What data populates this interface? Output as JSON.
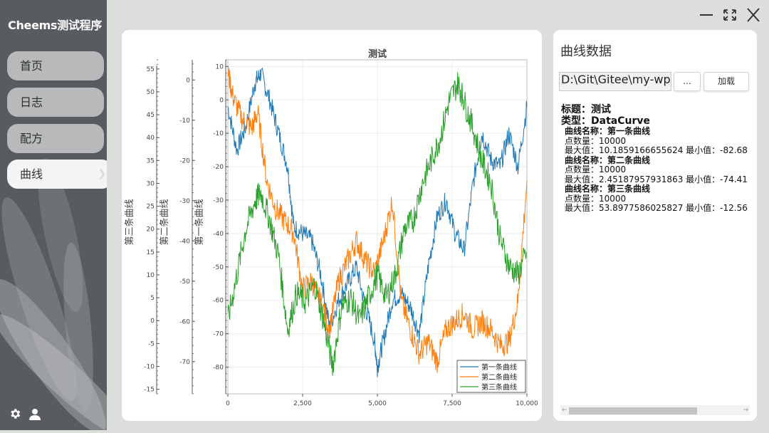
{
  "app": {
    "title": "Cheems测试程序"
  },
  "nav": {
    "items": [
      {
        "label": "首页"
      },
      {
        "label": "日志"
      },
      {
        "label": "配方"
      },
      {
        "label": "曲线",
        "active": true
      }
    ]
  },
  "icons": {
    "settings": "gear-icon",
    "user": "user-icon",
    "minimize": "minimize-icon",
    "maximize": "maximize-icon",
    "close": "close-icon",
    "chevron": "chevron-right-icon"
  },
  "data_panel": {
    "title": "曲线数据",
    "path_value": "D:\\Git\\Gitee\\my-wpf\\",
    "browse_label": "...",
    "load_label": "加载",
    "info_title": "标题：测试",
    "info_type": "类型：DataCurve",
    "curves": [
      {
        "name": "曲线名称：第一条曲线",
        "points": "点数量：10000",
        "range": "最大值：10.1859166655624   最小值：-82.68"
      },
      {
        "name": "曲线名称：第二条曲线",
        "points": "点数量：10000",
        "range": "最大值：2.45187957931863   最小值：-74.41"
      },
      {
        "name": "曲线名称：第三条曲线",
        "points": "点数量：10000",
        "range": "最大值：53.8977586025827   最小值：-12.56"
      }
    ]
  },
  "chart_data": {
    "type": "line",
    "title": "测试",
    "xlim": [
      0,
      10000
    ],
    "x_ticks": [
      "0",
      "2,500",
      "5,000",
      "7,500",
      "10,000"
    ],
    "axes": [
      {
        "label": "第一条曲线",
        "ylim": [
          -88,
          12
        ],
        "ticks": [
          10,
          0,
          -10,
          -20,
          -30,
          -40,
          -50,
          -60,
          -70,
          -80
        ]
      },
      {
        "label": "第二条曲线",
        "ylim": [
          -78,
          5
        ],
        "ticks": [
          0,
          -10,
          -20,
          -30,
          -40,
          -50,
          -60,
          -70
        ]
      },
      {
        "label": "第三条曲线",
        "ylim": [
          -16,
          57
        ],
        "ticks": [
          55,
          50,
          45,
          40,
          35,
          30,
          25,
          20,
          15,
          10,
          5,
          0,
          -5,
          -10,
          -15
        ]
      }
    ],
    "legend_position": "bottom-right",
    "series": [
      {
        "name": "第一条曲线",
        "color": "#1f77b4",
        "axis": 0,
        "x": [
          0,
          300,
          600,
          900,
          1100,
          1400,
          1700,
          2000,
          2200,
          2500,
          2800,
          3100,
          3400,
          3700,
          4000,
          4300,
          4600,
          4900,
          5000,
          5200,
          5500,
          5800,
          6100,
          6400,
          6700,
          7000,
          7300,
          7600,
          7900,
          8200,
          8500,
          8800,
          9100,
          9400,
          9700,
          10000
        ],
        "values": [
          -2,
          -15,
          -8,
          5,
          8,
          0,
          -10,
          -20,
          -38,
          -40,
          -42,
          -52,
          -68,
          -60,
          -55,
          -50,
          -62,
          -72,
          -80,
          -72,
          -60,
          -58,
          -62,
          -70,
          -50,
          -35,
          -30,
          -40,
          -45,
          -25,
          -10,
          -18,
          -20,
          -10,
          -20,
          -2
        ]
      },
      {
        "name": "第二条曲线",
        "color": "#ff7f0e",
        "axis": 1,
        "x": [
          0,
          200,
          500,
          800,
          1000,
          1300,
          1600,
          1900,
          2200,
          2500,
          2800,
          3100,
          3400,
          3700,
          4000,
          4300,
          4600,
          4900,
          5200,
          5500,
          5800,
          6100,
          6400,
          6700,
          7000,
          7300,
          7600,
          7900,
          8200,
          8500,
          8800,
          9100,
          9400,
          9700,
          10000
        ],
        "values": [
          2,
          -5,
          -10,
          -12,
          -8,
          -25,
          -32,
          -35,
          -38,
          -52,
          -50,
          -55,
          -62,
          -50,
          -45,
          -40,
          -45,
          -48,
          -40,
          -30,
          -55,
          -62,
          -68,
          -65,
          -70,
          -62,
          -60,
          -58,
          -62,
          -60,
          -62,
          -66,
          -65,
          -55,
          -25
        ]
      },
      {
        "name": "第三条曲线",
        "color": "#2ca02c",
        "axis": 2,
        "x": [
          0,
          300,
          600,
          900,
          1100,
          1400,
          1700,
          2000,
          2300,
          2600,
          2900,
          3200,
          3500,
          3800,
          4100,
          4400,
          4700,
          5000,
          5300,
          5600,
          5900,
          6200,
          6500,
          6800,
          7100,
          7400,
          7700,
          7900,
          8200,
          8500,
          8800,
          9100,
          9400,
          9700,
          10000
        ],
        "values": [
          0,
          10,
          20,
          26,
          28,
          22,
          14,
          -2,
          6,
          4,
          8,
          0,
          -10,
          3,
          5,
          0,
          5,
          10,
          5,
          10,
          20,
          22,
          30,
          35,
          40,
          48,
          52,
          48,
          42,
          35,
          30,
          18,
          12,
          10,
          15
        ]
      }
    ]
  }
}
